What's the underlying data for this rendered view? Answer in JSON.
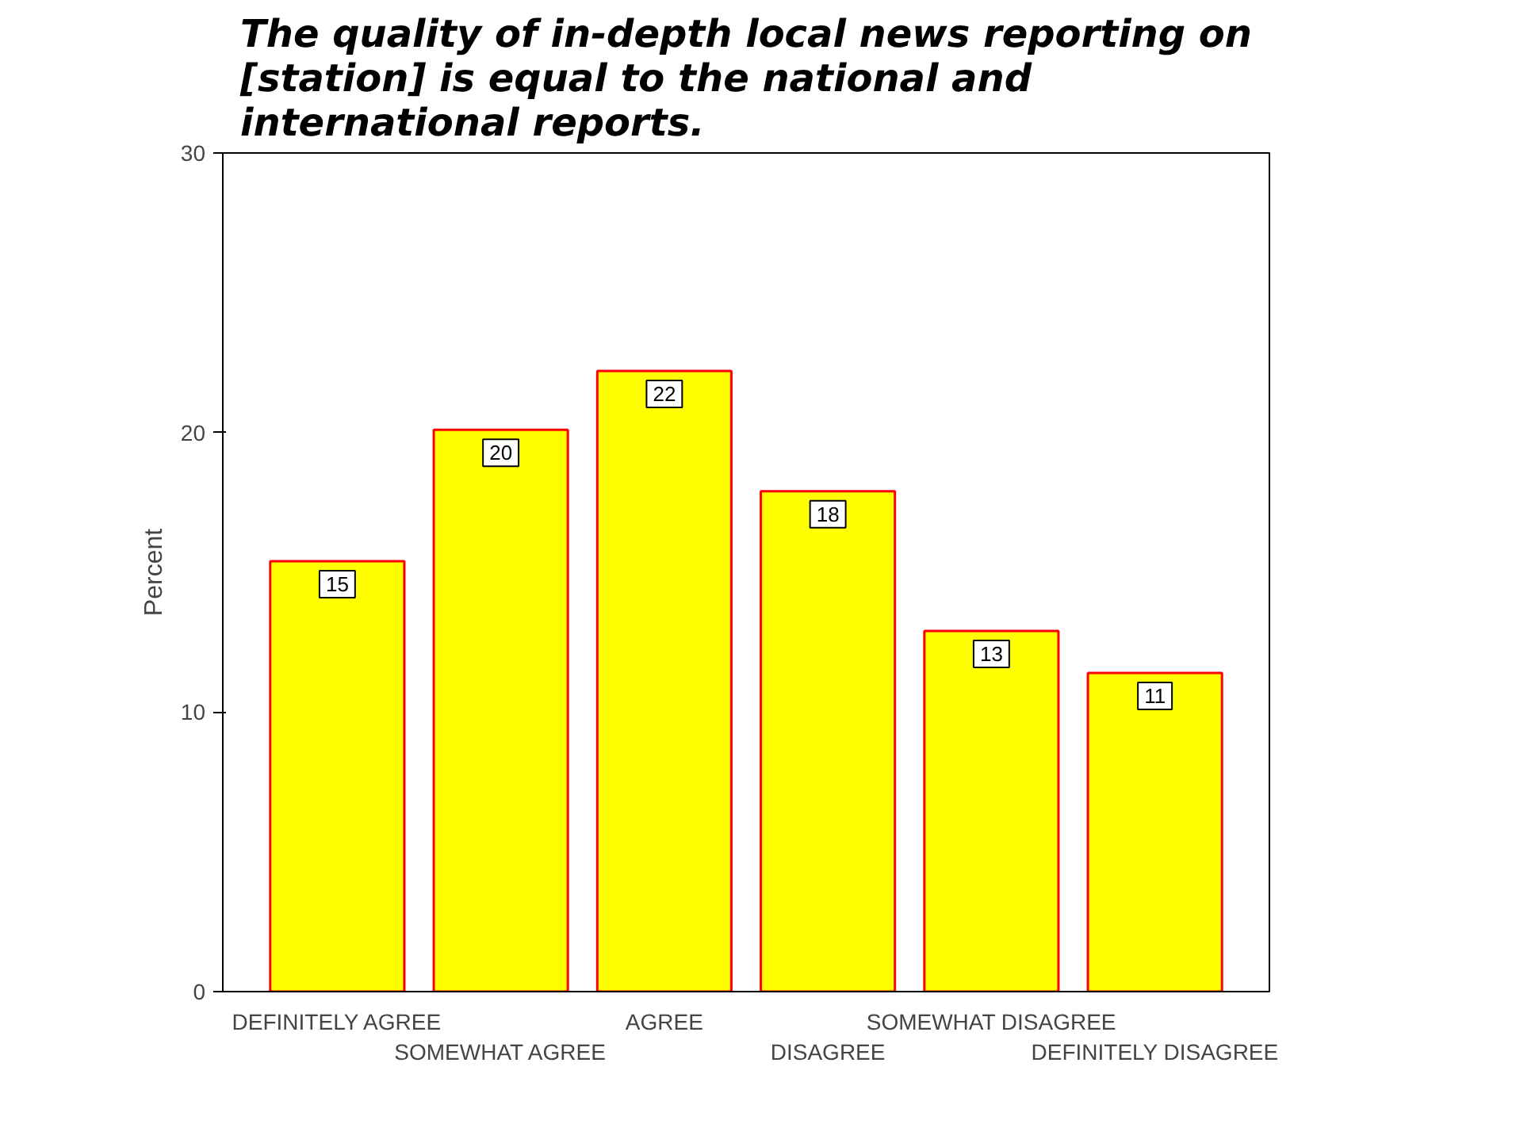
{
  "chart_data": {
    "type": "bar",
    "title": "The quality of in-depth local news reporting on [station] is equal to the national and international reports.",
    "ylabel": "Percent",
    "categories": [
      "DEFINITELY AGREE",
      "SOMEWHAT AGREE",
      "AGREE",
      "DISAGREE",
      "SOMEWHAT DISAGREE",
      "DEFINITELY DISAGREE"
    ],
    "values": [
      15.4,
      20.1,
      22.2,
      17.9,
      12.9,
      11.4
    ],
    "value_labels": [
      "15",
      "20",
      "22",
      "18",
      "13",
      "11"
    ],
    "color": "#ffff00",
    "ylim": [
      0,
      30
    ],
    "yticks": [
      0,
      10,
      20,
      30
    ],
    "grid": false
  }
}
